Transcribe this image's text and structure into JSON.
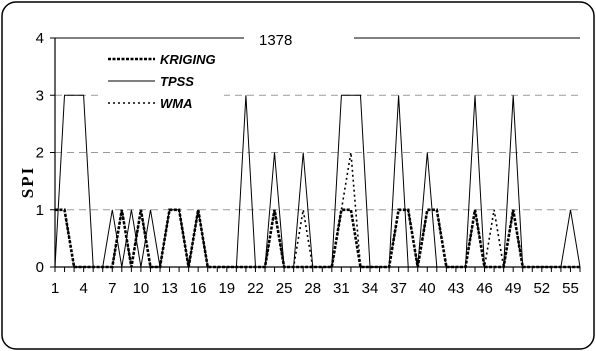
{
  "chart_data": {
    "type": "line",
    "title": "1378",
    "xlabel": "",
    "ylabel": "SPI",
    "xlim": [
      1,
      56
    ],
    "ylim": [
      0,
      4
    ],
    "y_ticks": [
      0,
      1,
      2,
      3,
      4
    ],
    "x_ticks": [
      1,
      4,
      7,
      10,
      13,
      16,
      19,
      22,
      25,
      28,
      31,
      34,
      37,
      40,
      43,
      46,
      49,
      52,
      55
    ],
    "grid": "horizontal dashed",
    "legend_position": "top-left",
    "x": [
      1,
      2,
      3,
      4,
      5,
      6,
      7,
      8,
      9,
      10,
      11,
      12,
      13,
      14,
      15,
      16,
      17,
      18,
      19,
      20,
      21,
      22,
      23,
      24,
      25,
      26,
      27,
      28,
      29,
      30,
      31,
      32,
      33,
      34,
      35,
      36,
      37,
      38,
      39,
      40,
      41,
      42,
      43,
      44,
      45,
      46,
      47,
      48,
      49,
      50,
      51,
      52,
      53,
      54,
      55,
      56
    ],
    "series": [
      {
        "name": "KRIGING",
        "style": "dash-dot-thick",
        "color": "#000000",
        "values": [
          1,
          1,
          0,
          0,
          0,
          0,
          0,
          1,
          0,
          1,
          0,
          0,
          1,
          1,
          0,
          1,
          0,
          0,
          0,
          0,
          0,
          0,
          0,
          1,
          0,
          0,
          0,
          0,
          0,
          0,
          1,
          1,
          0,
          0,
          0,
          0,
          1,
          1,
          0,
          1,
          1,
          0,
          0,
          0,
          1,
          0,
          0,
          0,
          1,
          0,
          0,
          0,
          0,
          0,
          0,
          0
        ]
      },
      {
        "name": "TPSS",
        "style": "solid",
        "color": "#000000",
        "values": [
          0,
          3,
          3,
          3,
          0,
          0,
          1,
          0,
          1,
          0,
          1,
          0,
          1,
          1,
          0,
          1,
          0,
          0,
          0,
          0,
          3,
          0,
          0,
          2,
          0,
          0,
          2,
          0,
          0,
          0,
          3,
          3,
          3,
          0,
          0,
          0,
          3,
          0,
          0,
          2,
          0,
          0,
          0,
          0,
          3,
          0,
          0,
          0,
          3,
          0,
          0,
          0,
          0,
          0,
          1,
          0
        ]
      },
      {
        "name": "WMA",
        "style": "dotted",
        "color": "#000000",
        "values": [
          1,
          1,
          0,
          0,
          0,
          0,
          0,
          1,
          0,
          1,
          0,
          0,
          1,
          1,
          0,
          1,
          0,
          0,
          0,
          0,
          0,
          0,
          0,
          1,
          0,
          0,
          1,
          0,
          0,
          0,
          1,
          2,
          0,
          0,
          0,
          0,
          1,
          1,
          0,
          1,
          1,
          0,
          0,
          0,
          1,
          0,
          1,
          0,
          1,
          0,
          0,
          0,
          0,
          0,
          0,
          0
        ]
      }
    ]
  }
}
